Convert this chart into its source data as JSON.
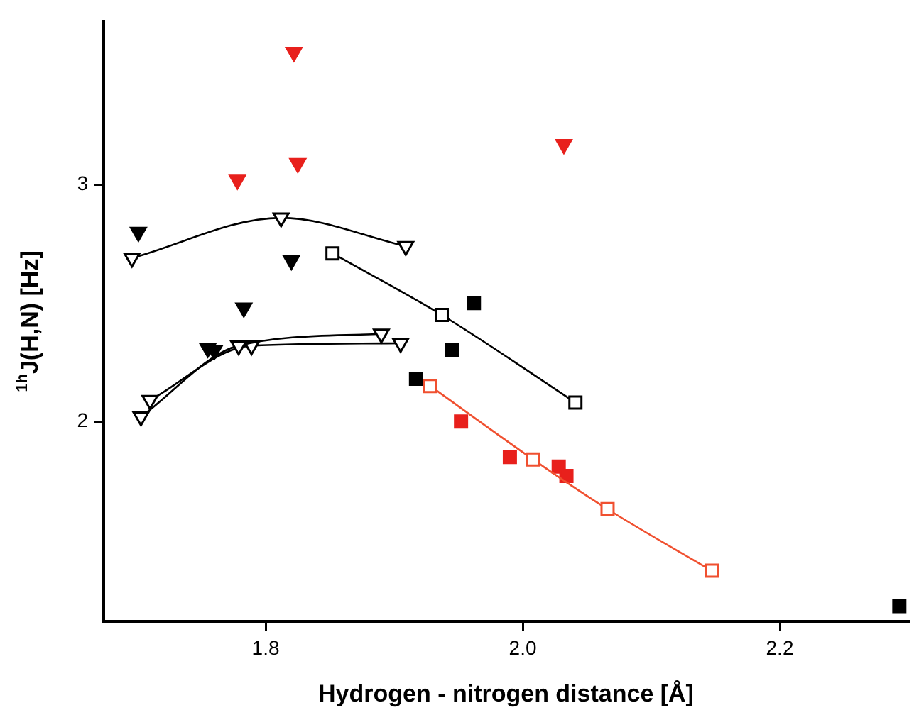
{
  "chart_data": {
    "type": "scatter",
    "xlabel": "Hydrogen - nitrogen distance [Å]",
    "ylabel": "$^{1h}$J(H,N) [Hz]",
    "xlim": [
      1.674,
      2.3
    ],
    "ylim": [
      1.156,
      3.69
    ],
    "xticks": [
      {
        "value": 1.8,
        "label": "1.8"
      },
      {
        "value": 2.0,
        "label": "2.0"
      },
      {
        "value": 2.2,
        "label": "2.2"
      }
    ],
    "yticks": [
      2,
      3
    ],
    "grid": false,
    "legend": false,
    "series": [
      {
        "type": "scatter",
        "marker": "triangle",
        "color": "#e8201c",
        "x": [
          1.822,
          1.825,
          1.778,
          2.032
        ],
        "values": [
          3.56,
          3.09,
          3.02,
          3.17
        ]
      },
      {
        "type": "scatter",
        "marker": "triangle",
        "color": "#000000",
        "x": [
          1.701,
          1.82,
          1.783,
          1.755,
          1.76
        ],
        "values": [
          2.8,
          2.68,
          2.48,
          2.31,
          2.3
        ]
      },
      {
        "type": "line",
        "marker": "triangle",
        "color": "#000000",
        "x": [
          1.696,
          1.812,
          1.909
        ],
        "values": [
          2.69,
          2.86,
          2.74
        ]
      },
      {
        "type": "line",
        "marker": "triangle",
        "color": "#000000",
        "x": [
          1.703,
          1.779,
          1.89
        ],
        "values": [
          2.02,
          2.32,
          2.37
        ]
      },
      {
        "type": "line",
        "marker": "triangle",
        "color": "#000000",
        "x": [
          1.71,
          1.789,
          1.905
        ],
        "values": [
          2.09,
          2.32,
          2.33
        ]
      },
      {
        "type": "line",
        "marker": "square",
        "color": "#000000",
        "x": [
          1.852,
          1.937,
          2.041
        ],
        "values": [
          2.71,
          2.45,
          2.08
        ]
      },
      {
        "type": "scatter",
        "marker": "square",
        "color": "#000000",
        "x": [
          1.962,
          1.945,
          1.917,
          2.293
        ],
        "values": [
          2.5,
          2.3,
          2.18,
          1.22
        ]
      },
      {
        "type": "line",
        "marker": "square",
        "color": "#f05030",
        "x": [
          1.928,
          2.008,
          2.066,
          2.147
        ],
        "values": [
          2.15,
          1.84,
          1.63,
          1.37
        ]
      },
      {
        "type": "scatter",
        "marker": "square",
        "color": "#e8201c",
        "x": [
          1.952,
          1.99,
          2.028,
          2.034
        ],
        "values": [
          2.0,
          1.85,
          1.81,
          1.77
        ]
      }
    ]
  }
}
